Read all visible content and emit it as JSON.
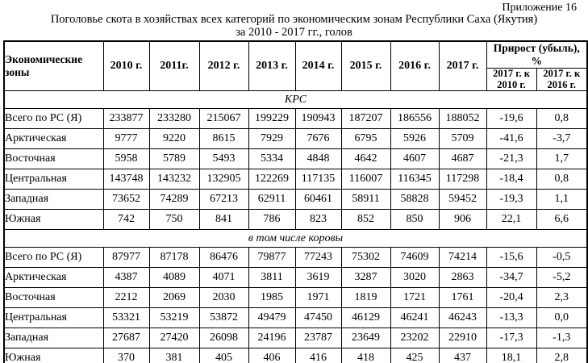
{
  "page": {
    "appendix": "Приложение 16",
    "title_line1": "Поголовье скота в хозяйствах всех категорий по экономическим зонам Республики Саха (Якутия)",
    "title_line2": "за 2010 - 2017 гг., голов"
  },
  "table": {
    "zone_header": "Экономические зоны",
    "year_headers": [
      "2010 г.",
      "2011г.",
      "2012 г.",
      "2013 г.",
      "2014 г.",
      "2015 г.",
      "2016 г.",
      "2017 г."
    ],
    "percent_header": "Прирост (убыль), %",
    "percent_subheaders": [
      "2017 г. к 2010 г.",
      "2017 г. к 2016 г."
    ],
    "sections": [
      {
        "title": "КРС",
        "rows": [
          {
            "zone": "Всего по РС (Я)",
            "values": [
              "233877",
              "233280",
              "215067",
              "199229",
              "190943",
              "187207",
              "186556",
              "188052",
              "-19,6",
              "0,8"
            ]
          },
          {
            "zone": "Арктическая",
            "values": [
              "9777",
              "9220",
              "8615",
              "7929",
              "7676",
              "6795",
              "5926",
              "5709",
              "-41,6",
              "-3,7"
            ]
          },
          {
            "zone": "Восточная",
            "values": [
              "5958",
              "5789",
              "5493",
              "5334",
              "4848",
              "4642",
              "4607",
              "4687",
              "-21,3",
              "1,7"
            ]
          },
          {
            "zone": "Центральная",
            "values": [
              "143748",
              "143232",
              "132905",
              "122269",
              "117135",
              "116007",
              "116345",
              "117298",
              "-18,4",
              "0,8"
            ]
          },
          {
            "zone": "Западная",
            "values": [
              "73652",
              "74289",
              "67213",
              "62911",
              "60461",
              "58911",
              "58828",
              "59452",
              "-19,3",
              "1,1"
            ]
          },
          {
            "zone": "Южная",
            "values": [
              "742",
              "750",
              "841",
              "786",
              "823",
              "852",
              "850",
              "906",
              "22,1",
              "6,6"
            ]
          }
        ]
      },
      {
        "title": "в том числе коровы",
        "rows": [
          {
            "zone": "Всего по РС (Я)",
            "values": [
              "87977",
              "87178",
              "86476",
              "79877",
              "77243",
              "75302",
              "74609",
              "74214",
              "-15,6",
              "-0,5"
            ]
          },
          {
            "zone": "Арктическая",
            "values": [
              "4387",
              "4089",
              "4071",
              "3811",
              "3619",
              "3287",
              "3020",
              "2863",
              "-34,7",
              "-5,2"
            ]
          },
          {
            "zone": "Восточная",
            "values": [
              "2212",
              "2069",
              "2030",
              "1985",
              "1971",
              "1819",
              "1721",
              "1761",
              "-20,4",
              "2,3"
            ]
          },
          {
            "zone": "Центральная",
            "values": [
              "53321",
              "53219",
              "53872",
              "49479",
              "47450",
              "46129",
              "46241",
              "46243",
              "-13,3",
              "0,0"
            ]
          },
          {
            "zone": "Западная",
            "values": [
              "27687",
              "27420",
              "26098",
              "24196",
              "23787",
              "23649",
              "23202",
              "22910",
              "-17,3",
              "-1,3"
            ]
          },
          {
            "zone": "Южная",
            "values": [
              "370",
              "381",
              "405",
              "406",
              "416",
              "418",
              "425",
              "437",
              "18,1",
              "2,8"
            ]
          }
        ]
      }
    ]
  }
}
